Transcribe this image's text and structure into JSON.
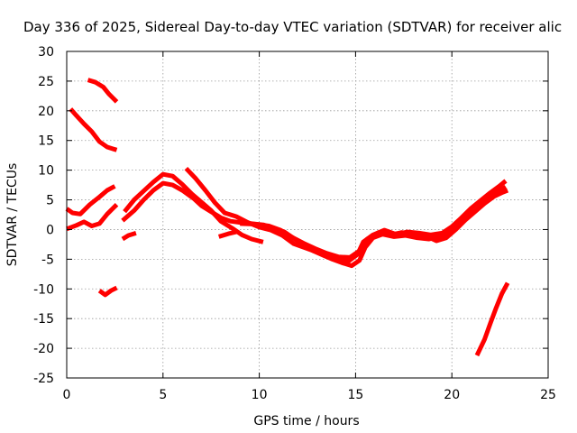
{
  "chart_data": {
    "type": "line",
    "title": "Day 336 of 2025, Sidereal Day-to-day VTEC variation (SDTVAR) for receiver alic",
    "xlabel": "GPS time / hours",
    "ylabel": "SDTVAR / TECUs",
    "xlim": [
      0,
      25
    ],
    "ylim": [
      -25,
      30
    ],
    "xticks": [
      0,
      5,
      10,
      15,
      20,
      25
    ],
    "yticks": [
      -25,
      -20,
      -15,
      -10,
      -5,
      0,
      5,
      10,
      15,
      20,
      25,
      30
    ],
    "grid": true,
    "color": "#ff0000",
    "series": [
      {
        "name": "seg-high-1",
        "points": [
          [
            1.1,
            25.2
          ],
          [
            1.5,
            24.8
          ],
          [
            1.9,
            24.0
          ],
          [
            2.2,
            22.8
          ],
          [
            2.6,
            21.5
          ]
        ]
      },
      {
        "name": "seg-high-2",
        "points": [
          [
            0.2,
            20.3
          ],
          [
            0.5,
            19.2
          ],
          [
            0.9,
            17.8
          ],
          [
            1.3,
            16.5
          ],
          [
            1.7,
            14.8
          ],
          [
            2.1,
            13.9
          ],
          [
            2.6,
            13.4
          ]
        ]
      },
      {
        "name": "seg-neg-1",
        "points": [
          [
            1.7,
            -10.3
          ],
          [
            2.0,
            -11.0
          ],
          [
            2.3,
            -10.3
          ],
          [
            2.6,
            -9.8
          ]
        ]
      },
      {
        "name": "seg-neg-2",
        "points": [
          [
            2.9,
            -1.6
          ],
          [
            3.2,
            -1.0
          ],
          [
            3.6,
            -0.6
          ]
        ]
      },
      {
        "name": "seg-rise",
        "points": [
          [
            21.3,
            -21.2
          ],
          [
            21.7,
            -18.5
          ],
          [
            22.0,
            -15.8
          ],
          [
            22.3,
            -13.2
          ],
          [
            22.6,
            -10.8
          ],
          [
            22.9,
            -9.0
          ]
        ]
      },
      {
        "name": "seg-a",
        "points": [
          [
            0.0,
            3.5
          ],
          [
            0.3,
            2.8
          ],
          [
            0.7,
            2.6
          ],
          [
            1.2,
            4.2
          ],
          [
            1.7,
            5.5
          ],
          [
            2.1,
            6.6
          ],
          [
            2.5,
            7.3
          ]
        ]
      },
      {
        "name": "seg-b",
        "points": [
          [
            0.0,
            0.1
          ],
          [
            0.5,
            0.7
          ],
          [
            0.9,
            1.3
          ],
          [
            1.3,
            0.6
          ],
          [
            1.7,
            1.0
          ],
          [
            2.1,
            2.6
          ],
          [
            2.6,
            4.2
          ]
        ]
      },
      {
        "name": "seg-c",
        "points": [
          [
            2.9,
            1.5
          ],
          [
            3.5,
            3.2
          ],
          [
            4.0,
            5.0
          ],
          [
            4.5,
            6.6
          ],
          [
            5.0,
            7.8
          ],
          [
            5.5,
            7.5
          ],
          [
            6.0,
            6.6
          ],
          [
            6.6,
            5.2
          ],
          [
            7.0,
            4.0
          ],
          [
            7.5,
            3.0
          ],
          [
            8.0,
            2.0
          ],
          [
            8.5,
            1.4
          ],
          [
            9.0,
            1.2
          ],
          [
            9.6,
            1.0
          ],
          [
            10.2,
            0.8
          ],
          [
            10.8,
            0.2
          ],
          [
            11.3,
            -0.4
          ],
          [
            11.8,
            -1.5
          ],
          [
            12.3,
            -2.6
          ],
          [
            12.8,
            -3.6
          ],
          [
            13.3,
            -4.3
          ],
          [
            13.8,
            -5.0
          ],
          [
            14.3,
            -5.6
          ],
          [
            14.8,
            -6.1
          ],
          [
            15.2,
            -5.2
          ],
          [
            15.5,
            -3.0
          ],
          [
            15.9,
            -1.4
          ],
          [
            16.4,
            -0.8
          ],
          [
            17.0,
            -1.2
          ],
          [
            17.6,
            -1.0
          ],
          [
            18.2,
            -1.4
          ],
          [
            18.8,
            -1.6
          ],
          [
            19.4,
            -1.2
          ],
          [
            19.9,
            -0.3
          ],
          [
            20.4,
            1.0
          ],
          [
            20.9,
            2.4
          ],
          [
            21.4,
            3.7
          ],
          [
            21.9,
            5.2
          ],
          [
            22.4,
            6.4
          ],
          [
            22.8,
            7.2
          ]
        ]
      },
      {
        "name": "seg-d",
        "points": [
          [
            3.0,
            3.0
          ],
          [
            3.5,
            5.0
          ],
          [
            4.0,
            6.5
          ],
          [
            4.5,
            8.0
          ],
          [
            5.0,
            9.3
          ],
          [
            5.5,
            9.0
          ],
          [
            6.0,
            7.6
          ],
          [
            6.5,
            6.0
          ],
          [
            7.0,
            4.6
          ],
          [
            7.5,
            3.2
          ],
          [
            8.0,
            1.4
          ],
          [
            8.6,
            0.2
          ],
          [
            9.1,
            -0.9
          ],
          [
            9.6,
            -1.6
          ],
          [
            10.2,
            -2.1
          ]
        ]
      },
      {
        "name": "seg-e",
        "points": [
          [
            6.2,
            10.3
          ],
          [
            6.7,
            8.6
          ],
          [
            7.2,
            6.6
          ],
          [
            7.7,
            4.5
          ],
          [
            8.2,
            2.8
          ],
          [
            8.8,
            2.2
          ],
          [
            9.4,
            1.2
          ],
          [
            10.0,
            0.4
          ],
          [
            10.6,
            -0.1
          ],
          [
            11.2,
            -1.0
          ],
          [
            11.8,
            -2.4
          ],
          [
            12.4,
            -3.1
          ],
          [
            13.0,
            -3.8
          ],
          [
            13.6,
            -4.6
          ],
          [
            14.2,
            -5.0
          ],
          [
            14.6,
            -5.4
          ],
          [
            15.1,
            -4.2
          ],
          [
            15.4,
            -2.1
          ],
          [
            15.9,
            -0.9
          ],
          [
            16.5,
            -0.1
          ],
          [
            17.1,
            -0.8
          ],
          [
            17.7,
            -0.4
          ],
          [
            18.3,
            -0.6
          ],
          [
            18.9,
            -0.9
          ],
          [
            19.5,
            -0.6
          ],
          [
            20.0,
            0.5
          ],
          [
            20.5,
            2.0
          ],
          [
            21.0,
            3.6
          ],
          [
            21.5,
            4.9
          ],
          [
            22.0,
            6.2
          ],
          [
            22.5,
            7.4
          ],
          [
            22.8,
            8.2
          ]
        ]
      },
      {
        "name": "seg-f",
        "points": [
          [
            7.9,
            -1.2
          ],
          [
            8.4,
            -0.7
          ],
          [
            8.8,
            -0.4
          ]
        ]
      },
      {
        "name": "seg-g",
        "points": [
          [
            9.0,
            1.0
          ],
          [
            9.8,
            0.9
          ],
          [
            10.5,
            0.6
          ],
          [
            11.1,
            -0.1
          ],
          [
            11.7,
            -1.3
          ],
          [
            12.3,
            -2.3
          ],
          [
            12.9,
            -3.2
          ],
          [
            13.5,
            -4.0
          ],
          [
            14.1,
            -4.6
          ],
          [
            14.7,
            -4.7
          ],
          [
            15.2,
            -3.6
          ],
          [
            15.6,
            -1.6
          ],
          [
            16.2,
            -0.5
          ],
          [
            16.8,
            -0.9
          ],
          [
            17.4,
            -0.5
          ],
          [
            18.0,
            -0.8
          ],
          [
            18.6,
            -1.0
          ],
          [
            19.2,
            -1.9
          ],
          [
            19.7,
            -1.4
          ],
          [
            20.2,
            0.0
          ],
          [
            20.7,
            1.6
          ],
          [
            21.2,
            3.0
          ],
          [
            21.7,
            4.4
          ],
          [
            22.2,
            5.6
          ],
          [
            22.6,
            6.2
          ],
          [
            22.9,
            6.6
          ]
        ]
      }
    ]
  }
}
